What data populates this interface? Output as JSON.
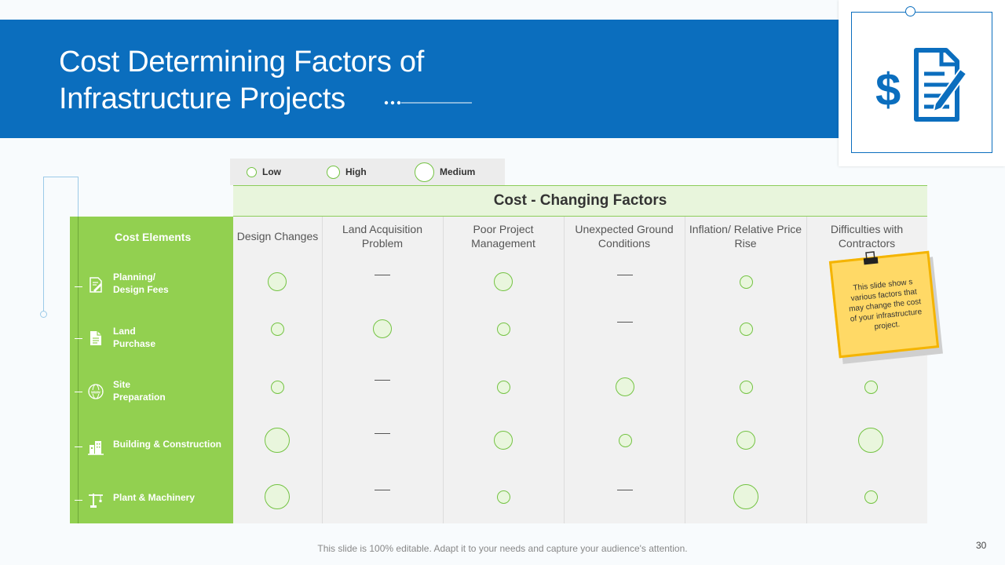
{
  "title_line1": "Cost Determining Factors of",
  "title_line2": "Infrastructure Projects",
  "legend": [
    {
      "label": "Low",
      "level": "low"
    },
    {
      "label": "High",
      "level": "high"
    },
    {
      "label": "Medium",
      "level": "medium"
    }
  ],
  "table": {
    "group_header": "Cost - Changing Factors",
    "row_header": "Cost Elements",
    "columns": [
      {
        "line1": "Design Changes",
        "line2": ""
      },
      {
        "line1": "Land Acquisition",
        "line2": "Problem"
      },
      {
        "line1": "Poor Project",
        "line2": "Management"
      },
      {
        "line1": "Unexpected Ground",
        "line2": "Conditions"
      },
      {
        "line1": "Inflation/ Relative Price",
        "line2": "Rise"
      },
      {
        "line1": "Difficulties with",
        "line2": "Contractors"
      }
    ],
    "rows": [
      {
        "line1": "Planning/",
        "line2": "Design Fees",
        "icon": "document-pen-icon",
        "cells": [
          "high",
          "none",
          "high",
          "none",
          "low",
          "none"
        ]
      },
      {
        "line1": "Land",
        "line2": "Purchase",
        "icon": "file-icon",
        "cells": [
          "low",
          "high",
          "low",
          "none",
          "low",
          "none"
        ]
      },
      {
        "line1": "Site",
        "line2": "Preparation",
        "icon": "globe-www-icon",
        "cells": [
          "low",
          "none",
          "low",
          "high",
          "low",
          "low"
        ]
      },
      {
        "line1": "Building & Construction",
        "line2": "",
        "icon": "buildings-icon",
        "cells": [
          "medium",
          "none",
          "high",
          "low",
          "high",
          "medium"
        ]
      },
      {
        "line1": "Plant & Machinery",
        "line2": "",
        "icon": "crane-icon",
        "cells": [
          "medium",
          "none",
          "low",
          "none",
          "medium",
          "low"
        ]
      }
    ]
  },
  "sticky_note": {
    "line1": "This slide show s",
    "line2": "various factors that",
    "line3": "may change the cost",
    "line4": "of  your infrastructure",
    "line5": "project."
  },
  "footer": "This slide is 100% editable. Adapt it to your needs and capture your audience's attention.",
  "page_number": "30",
  "colors": {
    "blue": "#0b6ebe",
    "green": "#92d050",
    "circle_stroke": "#74c343",
    "note": "#ffd966"
  }
}
